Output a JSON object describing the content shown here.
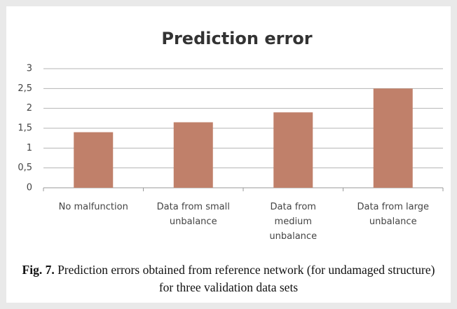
{
  "chart_data": {
    "type": "bar",
    "title": "Prediction error",
    "categories": [
      "No malfunction",
      "Data from small unbalance",
      "Data from medium unbalance",
      "Data from large unbalance"
    ],
    "values": [
      1.4,
      1.65,
      1.9,
      2.5
    ],
    "color": "#c0806a",
    "ylim": [
      0,
      3
    ],
    "yticks": [
      0,
      {
        "value": 0.5,
        "label": "0,5"
      },
      1,
      {
        "value": 1.5,
        "label": "1,5"
      },
      2,
      {
        "value": 2.5,
        "label": "2,5"
      },
      3
    ],
    "grid": true
  },
  "caption": {
    "label": "Fig. 7.",
    "text": "Prediction errors obtained from reference network (for undamaged structure) for three validation data sets"
  }
}
